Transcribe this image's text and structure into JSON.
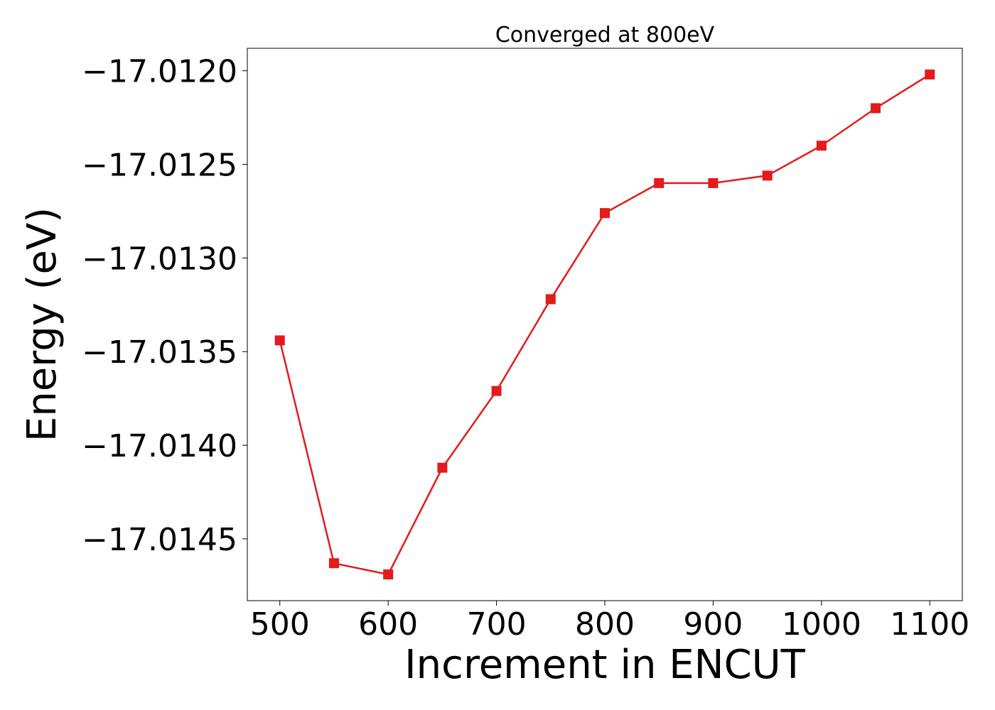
{
  "chart_data": {
    "type": "line",
    "title": "Converged at 800eV",
    "xlabel": "Increment in ENCUT",
    "ylabel": "Energy (eV)",
    "xlim": [
      470,
      1130
    ],
    "ylim": [
      -17.01483,
      -17.01188
    ],
    "xticks": [
      500,
      600,
      700,
      800,
      900,
      1000,
      1100
    ],
    "xtick_labels": [
      "500",
      "600",
      "700",
      "800",
      "900",
      "1000",
      "1100"
    ],
    "yticks": [
      -17.012,
      -17.0125,
      -17.013,
      -17.0135,
      -17.014,
      -17.0145
    ],
    "ytick_labels": [
      "−17.0120",
      "−17.0125",
      "−17.0130",
      "−17.0135",
      "−17.0140",
      "−17.0145"
    ],
    "grid": false,
    "series": [
      {
        "marker": "square",
        "color": "#e41a1c",
        "x": [
          500,
          550,
          600,
          650,
          700,
          750,
          800,
          850,
          900,
          950,
          1000,
          1050,
          1100
        ],
        "y": [
          -17.01344,
          -17.01463,
          -17.01469,
          -17.01412,
          -17.01371,
          -17.01322,
          -17.01276,
          -17.0126,
          -17.0126,
          -17.01256,
          -17.0124,
          -17.0122,
          -17.01202
        ]
      }
    ]
  }
}
